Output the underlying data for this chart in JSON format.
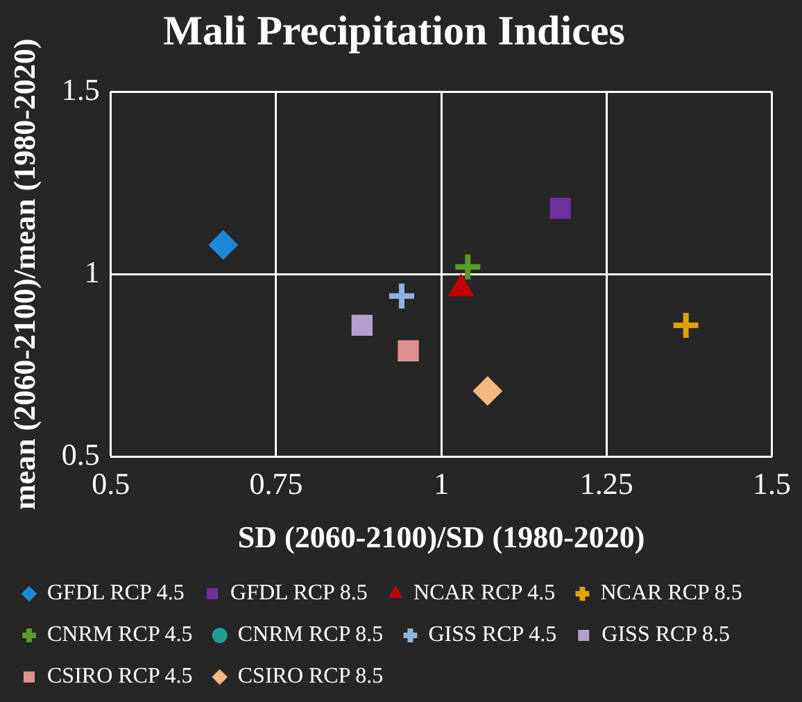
{
  "chart_data": {
    "type": "scatter",
    "title": "Mali Precipitation Indices",
    "xlabel": "SD (2060-2100)/SD (1980-2020)",
    "ylabel": "mean (2060-2100)/mean (1980-2020)",
    "xlim": [
      0.5,
      1.5
    ],
    "xticks": [
      0.5,
      0.75,
      1,
      1.25,
      1.5
    ],
    "ylim": [
      0.5,
      1.5
    ],
    "yticks": [
      0.5,
      1,
      1.5
    ],
    "grid": true,
    "legend": "bottom",
    "series": [
      {
        "name": "GFDL RCP 4.5",
        "color": "#1e88d8",
        "marker": "diamond",
        "x": [
          0.67
        ],
        "values": [
          1.08
        ]
      },
      {
        "name": "GFDL RCP 8.5",
        "color": "#7030a0",
        "marker": "square",
        "x": [
          1.18
        ],
        "values": [
          1.18
        ]
      },
      {
        "name": "NCAR RCP 4.5",
        "color": "#c00000",
        "marker": "triangle",
        "x": [
          1.03
        ],
        "values": [
          0.96
        ]
      },
      {
        "name": "NCAR RCP 8.5",
        "color": "#e0a000",
        "marker": "cross",
        "x": [
          1.37
        ],
        "values": [
          0.86
        ]
      },
      {
        "name": "CNRM RCP 4.5",
        "color": "#5a9a28",
        "marker": "cross",
        "x": [
          1.04
        ],
        "values": [
          1.02
        ]
      },
      {
        "name": "CNRM RCP 8.5",
        "color": "#20a090",
        "marker": "circle",
        "x": [
          null
        ],
        "values": [
          null
        ]
      },
      {
        "name": "GISS RCP 4.5",
        "color": "#8fb3dc",
        "marker": "cross",
        "x": [
          0.94
        ],
        "values": [
          0.94
        ]
      },
      {
        "name": "GISS RCP 8.5",
        "color": "#b4a0d0",
        "marker": "square",
        "x": [
          0.88
        ],
        "values": [
          0.86
        ]
      },
      {
        "name": "CSIRO RCP 4.5",
        "color": "#e09090",
        "marker": "square",
        "x": [
          0.95
        ],
        "values": [
          0.79
        ]
      },
      {
        "name": "CSIRO RCP 8.5",
        "color": "#f5b880",
        "marker": "diamond",
        "x": [
          1.07
        ],
        "values": [
          0.68
        ]
      }
    ]
  }
}
